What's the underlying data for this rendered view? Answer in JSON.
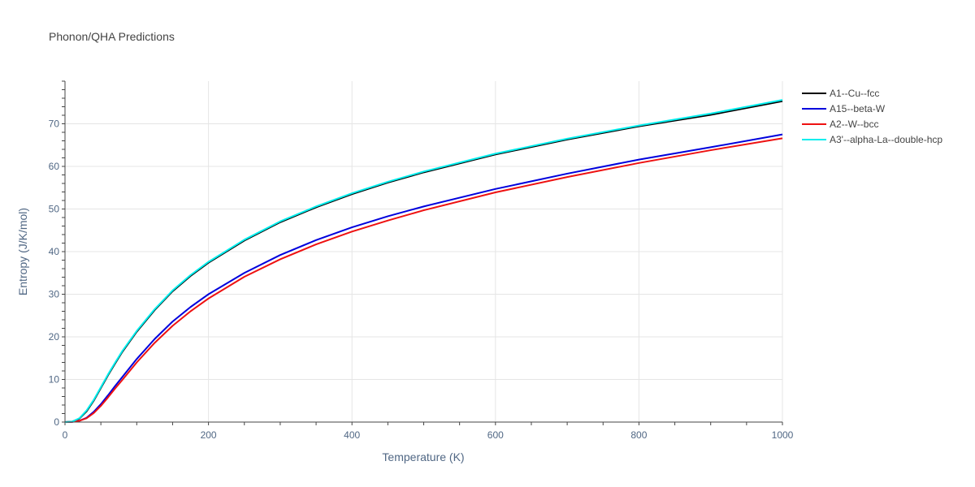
{
  "chart_data": {
    "type": "line",
    "title": "Phonon/QHA Predictions",
    "xlabel": "Temperature (K)",
    "ylabel": "Entropy (J/K/mol)",
    "xlim": [
      0,
      1000
    ],
    "ylim": [
      0,
      80
    ],
    "xticks": [
      0,
      200,
      400,
      600,
      800,
      1000
    ],
    "yticks": [
      0,
      10,
      20,
      30,
      40,
      50,
      60,
      70
    ],
    "grid": true,
    "legend_position": "top-right",
    "series": [
      {
        "name": "A1--Cu--fcc",
        "color": "#000000",
        "x": [
          0,
          10,
          20,
          30,
          40,
          50,
          60,
          70,
          80,
          100,
          125,
          150,
          175,
          200,
          250,
          300,
          350,
          400,
          450,
          500,
          600,
          700,
          800,
          900,
          1000
        ],
        "y": [
          0,
          0.1,
          0.8,
          2.5,
          5.0,
          8.0,
          11.0,
          13.8,
          16.5,
          21.2,
          26.3,
          30.7,
          34.3,
          37.4,
          42.6,
          46.9,
          50.4,
          53.5,
          56.2,
          58.6,
          62.8,
          66.3,
          69.4,
          72.1,
          75.3
        ]
      },
      {
        "name": "A15--beta-W",
        "color": "#0000dd",
        "x": [
          0,
          10,
          20,
          30,
          40,
          50,
          60,
          70,
          80,
          100,
          125,
          150,
          175,
          200,
          250,
          300,
          350,
          400,
          450,
          500,
          600,
          700,
          800,
          900,
          1000
        ],
        "y": [
          0,
          0.05,
          0.3,
          1.0,
          2.4,
          4.2,
          6.3,
          8.5,
          10.6,
          14.8,
          19.5,
          23.6,
          27.0,
          30.0,
          35.0,
          39.2,
          42.7,
          45.7,
          48.3,
          50.6,
          54.7,
          58.3,
          61.6,
          64.5,
          67.5
        ]
      },
      {
        "name": "A2--W--bcc",
        "color": "#ee1111",
        "x": [
          0,
          10,
          20,
          30,
          40,
          50,
          60,
          70,
          80,
          100,
          125,
          150,
          175,
          200,
          250,
          300,
          350,
          400,
          450,
          500,
          600,
          700,
          800,
          900,
          1000
        ],
        "y": [
          0,
          0.05,
          0.3,
          0.9,
          2.1,
          3.8,
          5.8,
          7.9,
          9.9,
          14.0,
          18.6,
          22.6,
          26.0,
          29.0,
          34.1,
          38.2,
          41.7,
          44.7,
          47.3,
          49.7,
          53.9,
          57.5,
          60.8,
          63.8,
          66.6
        ]
      },
      {
        "name": "A3'--alpha-La--double-hcp",
        "color": "#00eeee",
        "x": [
          0,
          10,
          20,
          30,
          40,
          50,
          60,
          70,
          80,
          100,
          125,
          150,
          175,
          200,
          250,
          300,
          350,
          400,
          450,
          500,
          600,
          700,
          800,
          900,
          1000
        ],
        "y": [
          0,
          0.1,
          0.9,
          2.7,
          5.2,
          8.2,
          11.2,
          14.0,
          16.7,
          21.4,
          26.5,
          30.9,
          34.5,
          37.6,
          42.8,
          47.1,
          50.6,
          53.7,
          56.4,
          58.8,
          63.0,
          66.5,
          69.6,
          72.4,
          75.6
        ]
      }
    ]
  }
}
